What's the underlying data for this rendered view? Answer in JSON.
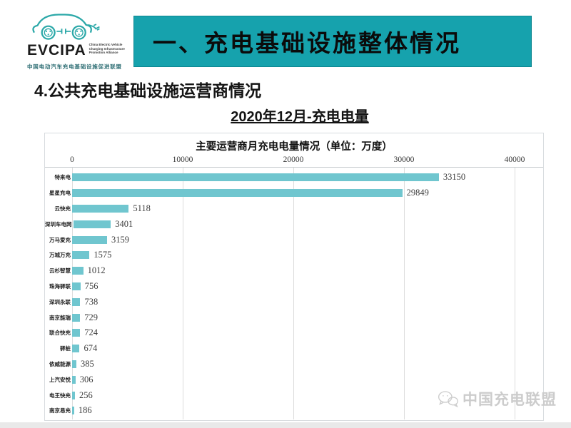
{
  "logo": {
    "acronym": "EVCIPA",
    "subtext_en": "China Electric Vehicle Charging Infrastructure Promotion Alliance",
    "subtext_cn": "中国电动汽车充电基础设施促进联盟"
  },
  "banner": {
    "title": "一、充电基础设施整体情况"
  },
  "section": {
    "heading": "4.公共充电基础设施运营商情况",
    "subtitle": "2020年12月-充电电量"
  },
  "chart_data": {
    "type": "bar",
    "orientation": "horizontal",
    "title": "主要运营商月充电电量情况（单位：万度）",
    "categories": [
      "特来电",
      "星星充电",
      "云快充",
      "深圳车电网",
      "万马爱充",
      "万城万充",
      "云杉智慧",
      "珠海驿联",
      "深圳永联",
      "南京能瑞",
      "联合快充",
      "驿桩",
      "依威能源",
      "上汽安悦",
      "电王快充",
      "南京易充"
    ],
    "values": [
      33150,
      29849,
      5118,
      3401,
      3159,
      1575,
      1012,
      756,
      738,
      729,
      724,
      674,
      385,
      306,
      256,
      186
    ],
    "xlabel": "",
    "ylabel": "",
    "xlim": [
      0,
      40000
    ],
    "xticks": [
      "0",
      "10000",
      "20000",
      "30000",
      "40000"
    ],
    "grid": true,
    "legend": "none",
    "bar_color": "#70c6cf"
  },
  "watermark": {
    "label": "中国充电联盟",
    "icon": "wechat-icon"
  },
  "colors": {
    "banner_bg": "#16a2ad",
    "bar": "#70c6cf",
    "logo_accent": "#2ba8a8",
    "watermark": "#cccccc"
  }
}
